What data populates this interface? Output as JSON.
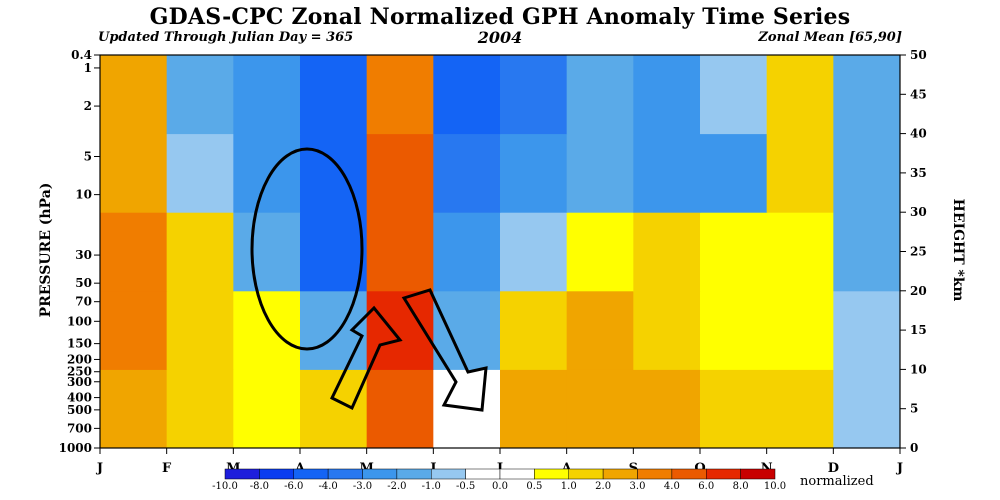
{
  "chart_data": {
    "type": "heatmap",
    "title": "GDAS-CPC Zonal Normalized GPH Anomaly Time Series",
    "subtitle_left": "Updated Through Julian Day = 365",
    "subtitle_center": "2004",
    "subtitle_right": "Zonal Mean [65,90]",
    "ylabel_left": "PRESSURE (hPa)",
    "ylabel_right": "HEIGHT *km",
    "pressure_ticks": [
      "0.4",
      "1",
      "2",
      "5",
      "10",
      "30",
      "50",
      "70",
      "100",
      "150",
      "200",
      "250",
      "300",
      "400",
      "500",
      "700",
      "1000"
    ],
    "height_ticks": [
      0,
      5,
      10,
      15,
      20,
      25,
      30,
      35,
      40,
      45,
      50
    ],
    "month_ticks": [
      "J",
      "F",
      "M",
      "A",
      "M",
      "J",
      "J",
      "A",
      "S",
      "O",
      "N",
      "D",
      "J"
    ],
    "colorbar": {
      "labels": [
        "-10.0",
        "-8.0",
        "-6.0",
        "-4.0",
        "-3.0",
        "-2.0",
        "-1.0",
        "-0.5",
        "0.0",
        "0.5",
        "1.0",
        "2.0",
        "3.0",
        "4.0",
        "6.0",
        "8.0",
        "10.0"
      ],
      "colors": [
        "#1e1edc",
        "#0a3cf0",
        "#1464f5",
        "#2878f0",
        "#3c96ec",
        "#5aaae8",
        "#96c8f0",
        "#ffffff",
        "#ffffff",
        "#ffff00",
        "#f5d200",
        "#f0a500",
        "#f07d00",
        "#eb5a00",
        "#e62800",
        "#c80000"
      ],
      "unit_label": "normalized"
    },
    "time_columns": [
      "Jan",
      "Feb",
      "Mar",
      "Apr",
      "May",
      "Jun",
      "Jul",
      "Aug",
      "Sep",
      "Oct",
      "Nov",
      "Dec"
    ],
    "level_rows_km": [
      "0-10",
      "10-20",
      "20-30",
      "30-40",
      "40-50"
    ],
    "anomaly_grid": [
      [
        2.5,
        1.0,
        0.5,
        1.0,
        5.0,
        -0.5,
        2.0,
        2.5,
        2.0,
        1.0,
        1.0,
        -1.0
      ],
      [
        3.0,
        1.5,
        0.5,
        -1.5,
        6.0,
        -2.0,
        1.0,
        2.0,
        1.5,
        0.5,
        0.5,
        -1.0
      ],
      [
        3.0,
        1.0,
        -2.0,
        -5.0,
        5.0,
        -3.0,
        -1.0,
        0.5,
        1.0,
        0.5,
        0.5,
        -2.0
      ],
      [
        2.5,
        -1.0,
        -3.0,
        -6.0,
        4.0,
        -4.0,
        -3.0,
        -2.0,
        -3.0,
        -3.0,
        1.0,
        -2.0
      ],
      [
        2.0,
        -2.0,
        -3.0,
        -6.0,
        3.0,
        -5.0,
        -4.0,
        -2.0,
        -3.0,
        -1.0,
        1.0,
        -2.0
      ]
    ],
    "annotations": [
      "ellipse around Apr stratospheric negative anomaly",
      "two arrows indicating downward propagation in May-Jul"
    ]
  }
}
